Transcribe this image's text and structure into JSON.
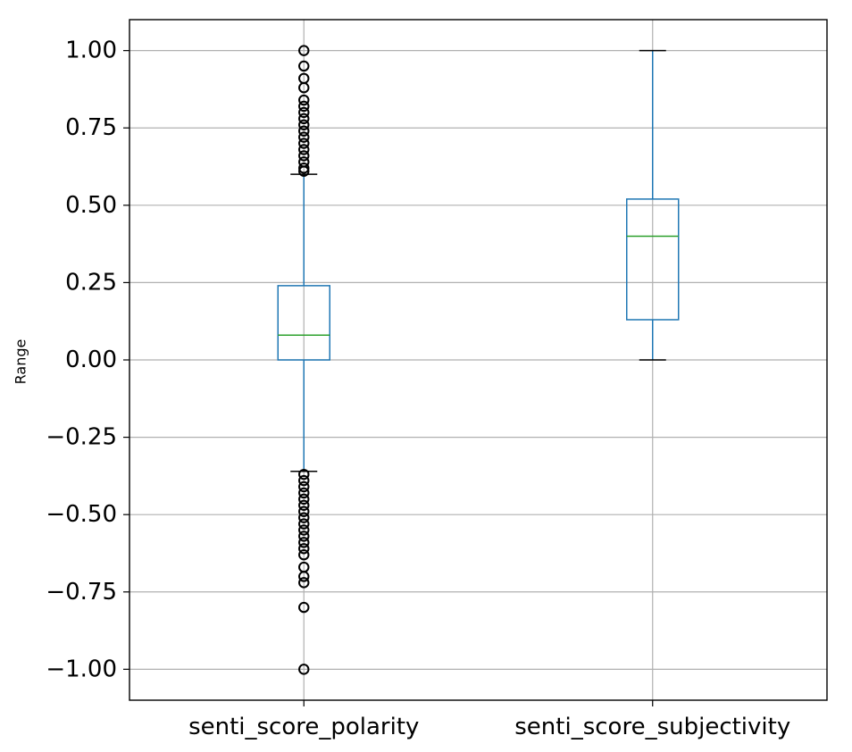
{
  "chart_data": {
    "type": "box",
    "title": "",
    "xlabel": "",
    "ylabel": "Range",
    "ylim": [
      -1.1,
      1.1
    ],
    "yticks": [
      1.0,
      0.75,
      0.5,
      0.25,
      0.0,
      -0.25,
      -0.5,
      -0.75,
      -1.0
    ],
    "ytick_labels": [
      "1.00",
      "0.75",
      "0.50",
      "0.25",
      "0.00",
      "−0.25",
      "−0.50",
      "−0.75",
      "−1.00"
    ],
    "grid": true,
    "categories": [
      "senti_score_polarity",
      "senti_score_subjectivity"
    ],
    "boxes": [
      {
        "label": "senti_score_polarity",
        "whisker_low": -0.36,
        "q1": 0.0,
        "median": 0.08,
        "q3": 0.24,
        "whisker_high": 0.6,
        "outliers": [
          1.0,
          0.95,
          0.91,
          0.88,
          0.84,
          0.82,
          0.8,
          0.78,
          0.76,
          0.74,
          0.72,
          0.7,
          0.68,
          0.66,
          0.64,
          0.62,
          0.61,
          -0.37,
          -0.39,
          -0.41,
          -0.43,
          -0.45,
          -0.47,
          -0.49,
          -0.51,
          -0.53,
          -0.55,
          -0.57,
          -0.59,
          -0.61,
          -0.63,
          -0.67,
          -0.7,
          -0.72,
          -0.8,
          -1.0
        ]
      },
      {
        "label": "senti_score_subjectivity",
        "whisker_low": 0.0,
        "q1": 0.13,
        "median": 0.4,
        "q3": 0.52,
        "whisker_high": 1.0,
        "outliers": []
      }
    ],
    "colors": {
      "box": "#1f77b4",
      "median": "#2ca02c",
      "outlier": "#000000",
      "grid": "#b0b0b0",
      "axes": "#000000"
    }
  }
}
